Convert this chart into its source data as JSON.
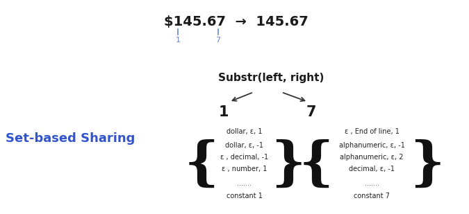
{
  "title_text": "$145.67  →  145.67",
  "title_color": "#1a1a1a",
  "marker1_color": "#6688cc",
  "marker2_color": "#6688cc",
  "marker1_label": "1",
  "marker2_label": "7",
  "substr_label": "Substr(left, right)",
  "left_num": "1",
  "right_num": "7",
  "set_based_label": "Set-based Sharing",
  "set_based_color": "#3355cc",
  "left_brace_items": [
    "dollar, ε, 1",
    "dollar, ε, -1",
    "ε , decimal, -1",
    "ε , number, 1",
    ".......",
    "constant 1"
  ],
  "right_brace_items": [
    "ε , End of line, 1",
    "alphanumeric, ε, -1",
    "alphanumeric, ε, 2",
    "decimal, ε, -1",
    ".......",
    "constant 7"
  ],
  "bg_color": "#ffffff",
  "title_fontsize": 14,
  "substr_fontsize": 11,
  "num_fontsize": 15,
  "label_fontsize": 13,
  "item_fontsize": 7,
  "brace_fontsize": 55
}
